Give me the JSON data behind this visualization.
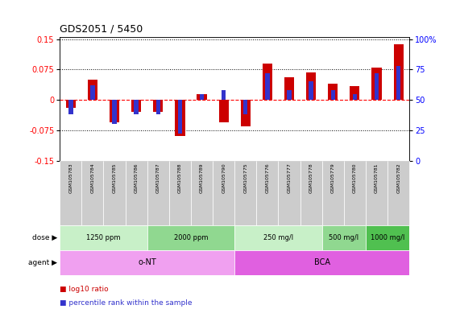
{
  "title": "GDS2051 / 5450",
  "samples": [
    "GSM105783",
    "GSM105784",
    "GSM105785",
    "GSM105786",
    "GSM105787",
    "GSM105788",
    "GSM105789",
    "GSM105790",
    "GSM105775",
    "GSM105776",
    "GSM105777",
    "GSM105778",
    "GSM105779",
    "GSM105780",
    "GSM105781",
    "GSM105782"
  ],
  "log10_ratio": [
    -0.02,
    0.05,
    -0.055,
    -0.03,
    -0.03,
    -0.09,
    0.015,
    -0.055,
    -0.065,
    0.09,
    0.055,
    0.068,
    0.04,
    0.035,
    0.08,
    0.138
  ],
  "percentile_rank": [
    38,
    62,
    30,
    38,
    38,
    22,
    55,
    58,
    38,
    72,
    58,
    65,
    58,
    55,
    72,
    78
  ],
  "dose_groups": [
    {
      "label": "1250 ppm",
      "start": 0,
      "end": 4,
      "color": "#c8f0c8"
    },
    {
      "label": "2000 ppm",
      "start": 4,
      "end": 8,
      "color": "#90d890"
    },
    {
      "label": "250 mg/l",
      "start": 8,
      "end": 12,
      "color": "#c8f0c8"
    },
    {
      "label": "500 mg/l",
      "start": 12,
      "end": 14,
      "color": "#90d890"
    },
    {
      "label": "1000 mg/l",
      "start": 14,
      "end": 16,
      "color": "#50c050"
    }
  ],
  "agent_groups": [
    {
      "label": "o-NT",
      "start": 0,
      "end": 8,
      "color": "#f0a0f0"
    },
    {
      "label": "BCA",
      "start": 8,
      "end": 16,
      "color": "#e060e0"
    }
  ],
  "bar_color_red": "#cc0000",
  "bar_color_blue": "#3333cc",
  "bg_color": "#ffffff",
  "legend_red": "log10 ratio",
  "legend_blue": "percentile rank within the sample",
  "label_area_color": "#cccccc"
}
